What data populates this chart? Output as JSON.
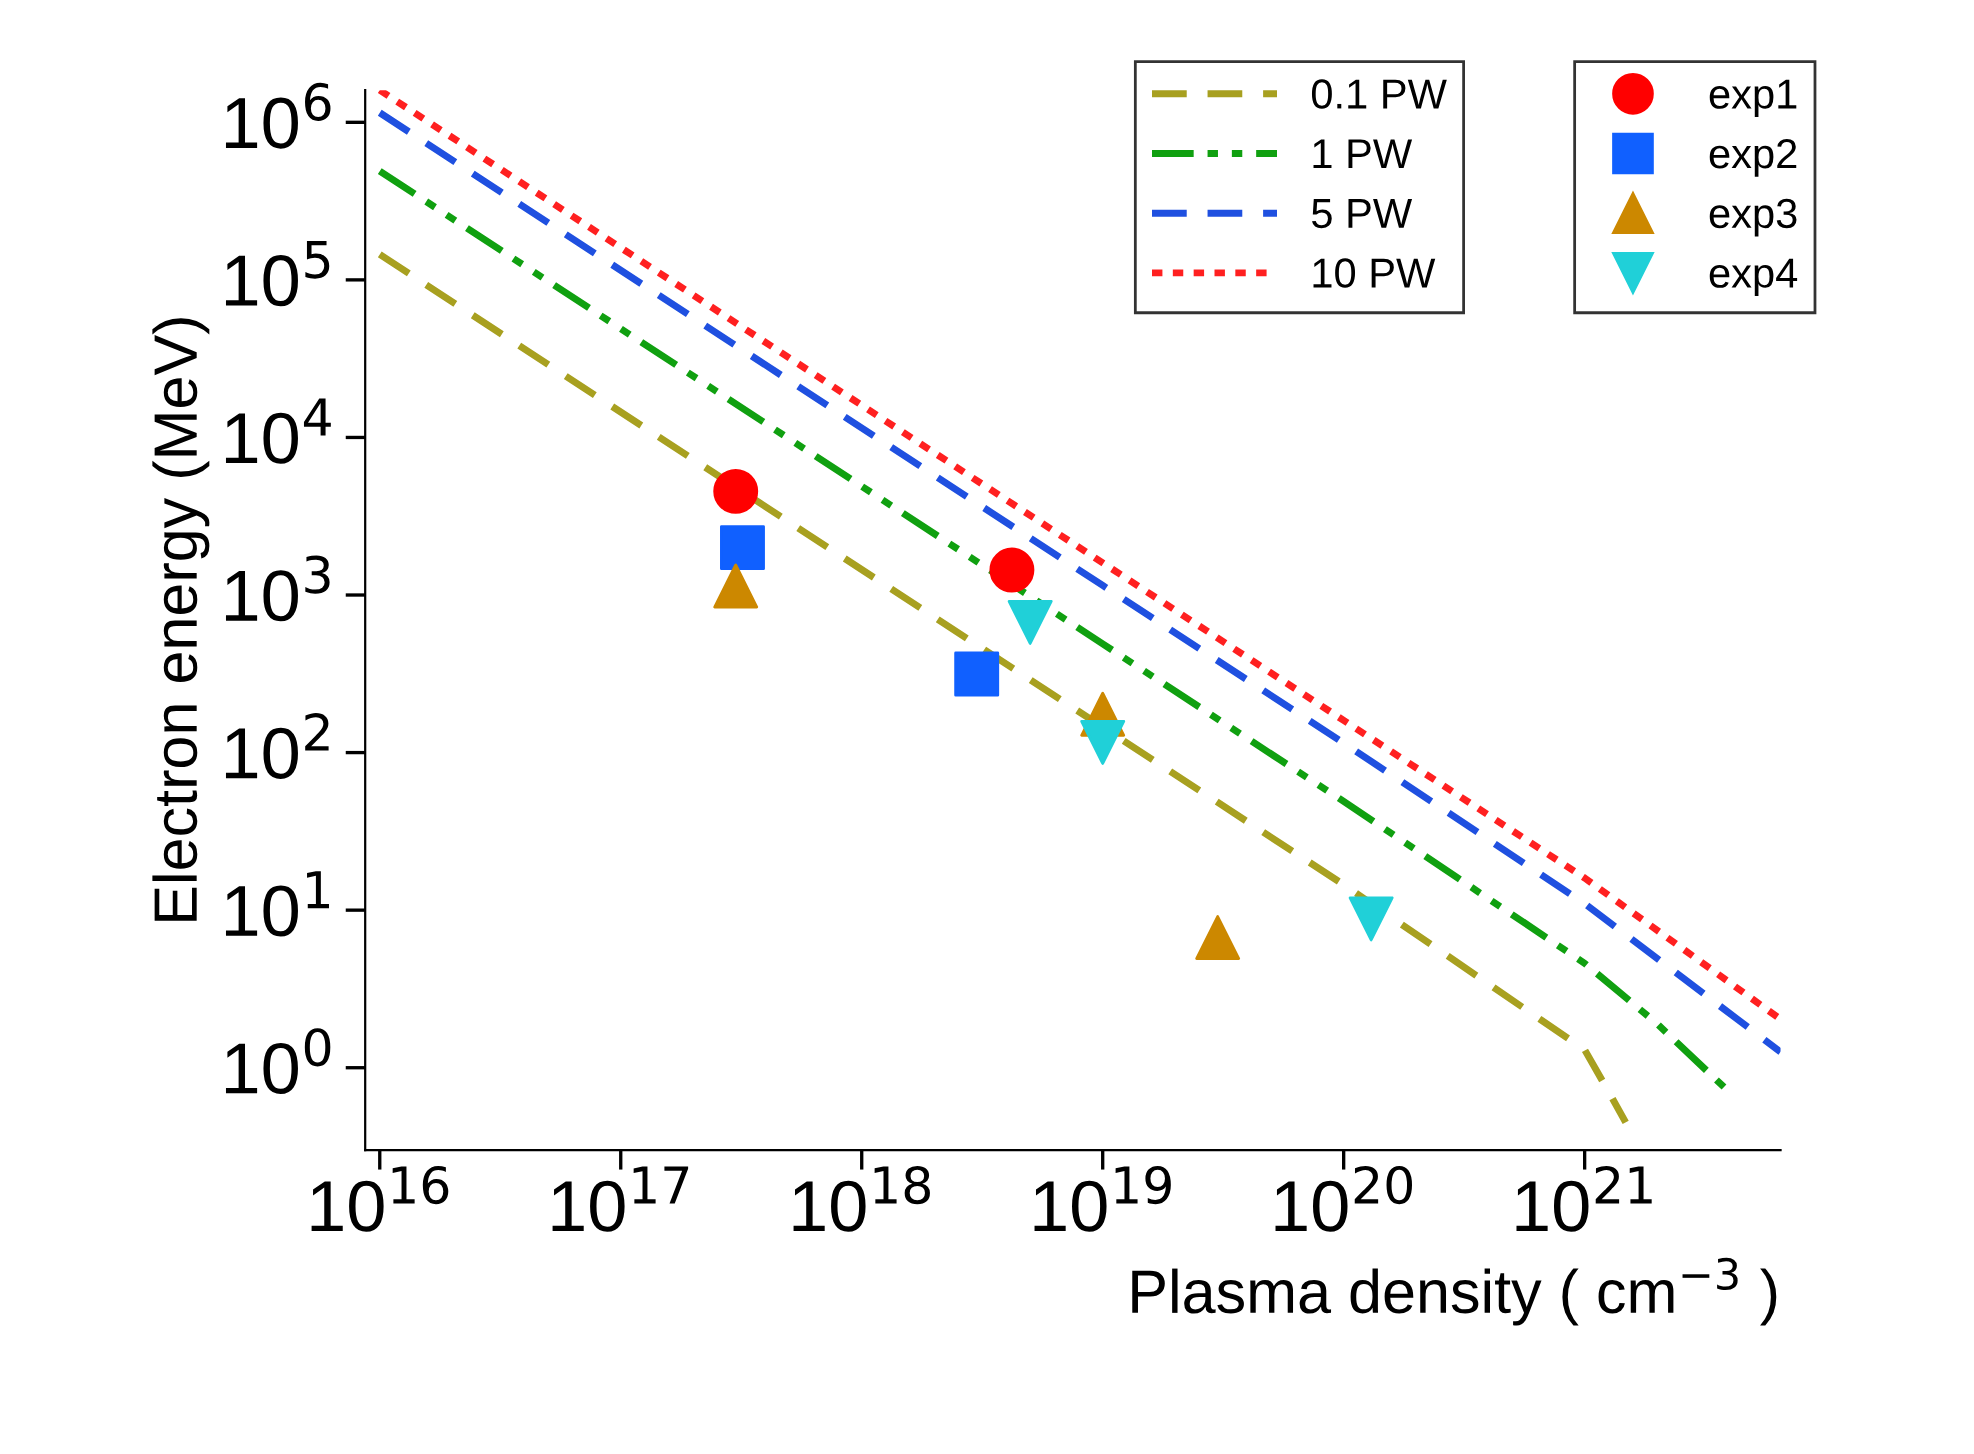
{
  "chart_data": {
    "type": "line",
    "xlabel": "Plasma density ( cm$^{−3}$ )",
    "ylabel": "Electron energy (MeV)",
    "log": "xy",
    "xlim": [
      8700000000000000.0,
      6.5e+21
    ],
    "ylim": [
      0.3,
      1600000.0
    ],
    "xticks": [
      {
        "value": 1e+16,
        "label": "10$^{16}$"
      },
      {
        "value": 1e+17,
        "label": "10$^{17}$"
      },
      {
        "value": 1e+18,
        "label": "10$^{18}$"
      },
      {
        "value": 1e+19,
        "label": "10$^{19}$"
      },
      {
        "value": 1e+20,
        "label": "10$^{20}$"
      },
      {
        "value": 1e+21,
        "label": "10$^{21}$"
      }
    ],
    "yticks": [
      {
        "value": 1,
        "label": "10$^{0}$"
      },
      {
        "value": 10,
        "label": "10$^{1}$"
      },
      {
        "value": 100,
        "label": "10$^{2}$"
      },
      {
        "value": 1000,
        "label": "10$^{3}$"
      },
      {
        "value": 10000,
        "label": "10$^{4}$"
      },
      {
        "value": 100000,
        "label": "10$^{5}$"
      },
      {
        "value": 1000000,
        "label": "10$^{6}$"
      }
    ],
    "grid": false,
    "legend": "top right",
    "series": [
      {
        "name": "0.1 PW",
        "line_style": "dashed",
        "color": "#a8a020",
        "x": [
          1e+16,
          1e+19,
          1e+20,
          1e+21,
          1.26e+21,
          1.48e+21
        ],
        "values": [
          145000,
          145,
          14.5,
          1.3,
          0.7,
          0.45
        ]
      },
      {
        "name": "1 PW",
        "line_style": "dashdotdot",
        "color": "#10a010",
        "x": [
          1e+16,
          1e+19,
          1e+20,
          1e+21,
          2e+21,
          3.8e+21
        ],
        "values": [
          490000,
          490,
          49,
          4.6,
          1.9,
          0.75
        ]
      },
      {
        "name": "5 PW",
        "line_style": "dashed",
        "color": "#1f50e0",
        "x": [
          1e+16,
          1e+19,
          1e+20,
          1e+21,
          6.5e+21
        ],
        "values": [
          1150000,
          1150,
          115,
          11,
          1.26
        ]
      },
      {
        "name": "10 PW",
        "line_style": "dotted",
        "color": "#ff2020",
        "x": [
          1e+16,
          1e+19,
          1e+20,
          1e+21,
          6.3e+21
        ],
        "values": [
          1600000,
          1600,
          160,
          16,
          2.1
        ]
      },
      {
        "name": "exp1",
        "type": "scatter",
        "marker": "circle",
        "color": "#ff0000",
        "x": [
          3e+17,
          4.2e+18
        ],
        "values": [
          4550,
          1440
        ]
      },
      {
        "name": "exp2",
        "type": "scatter",
        "marker": "square",
        "color": "#1060ff",
        "x": [
          3.2e+17,
          3e+18
        ],
        "values": [
          2000,
          315
        ]
      },
      {
        "name": "exp3",
        "type": "scatter",
        "marker": "triangle",
        "color": "#cc8800",
        "x": [
          3e+17,
          1e+19,
          3e+19
        ],
        "values": [
          1140,
          175,
          6.7
        ]
      },
      {
        "name": "exp4",
        "type": "scatter",
        "marker": "triangle_down",
        "color": "#20d0d8",
        "x": [
          5e+18,
          1e+19,
          1.3e+20
        ],
        "values": [
          670,
          116,
          8.8
        ]
      }
    ]
  }
}
